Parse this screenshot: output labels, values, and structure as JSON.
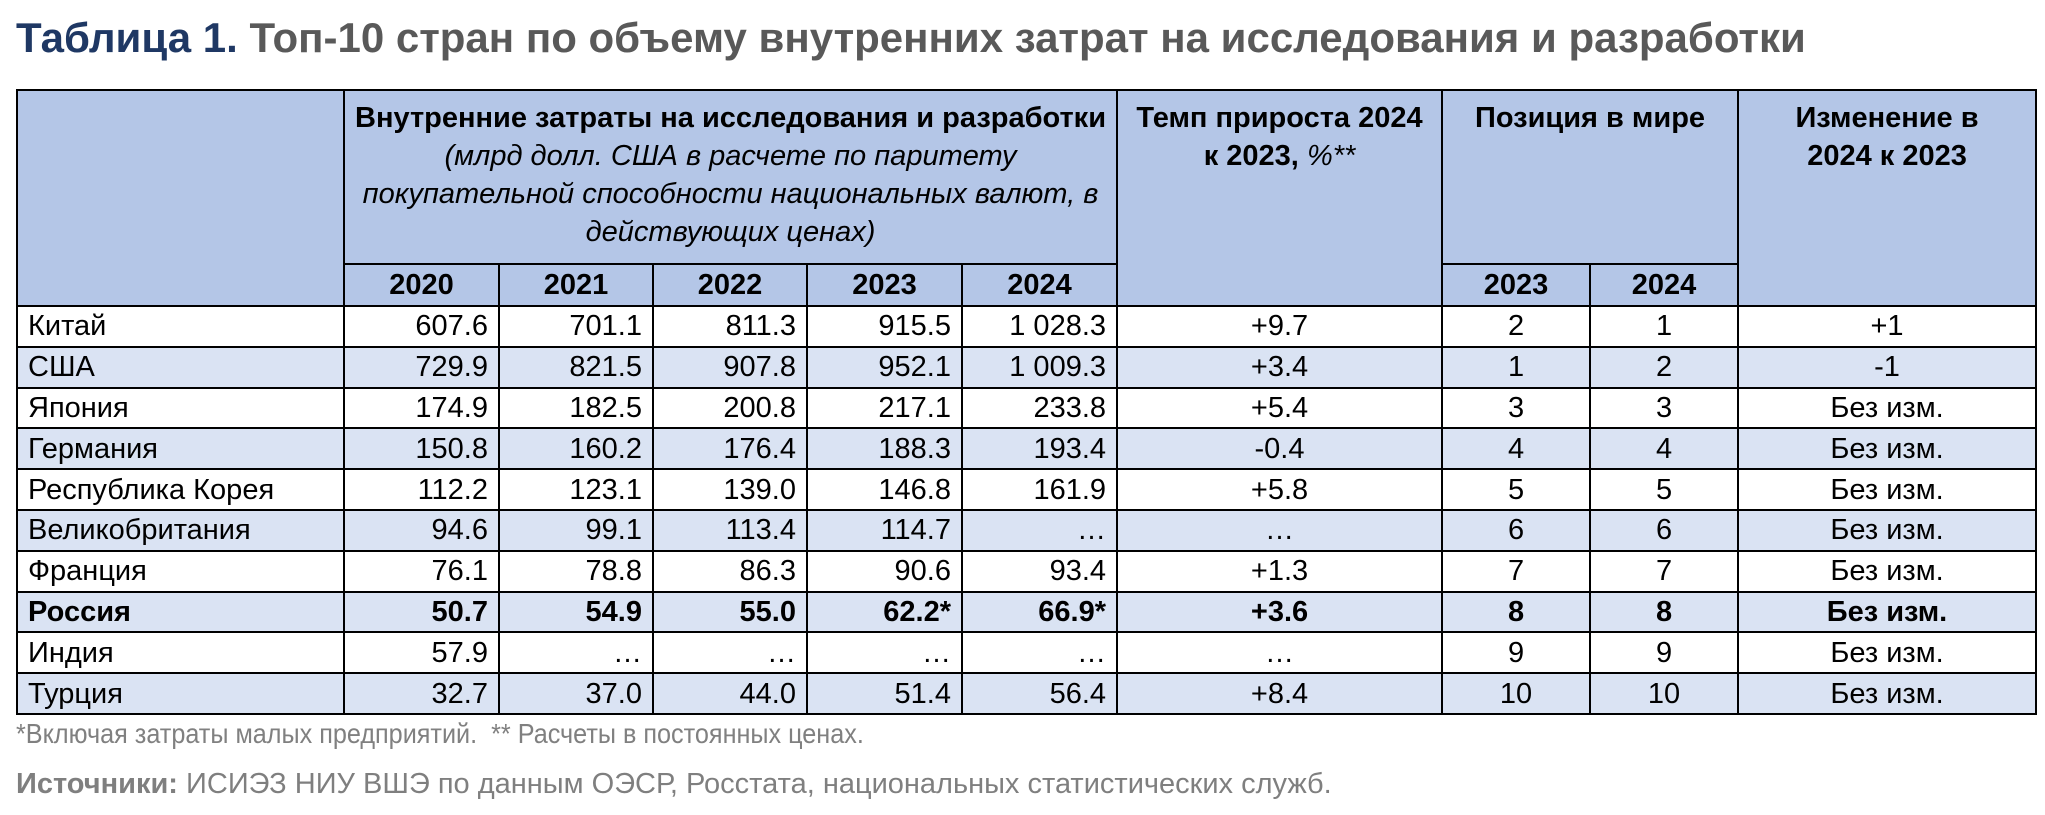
{
  "title": {
    "label": "Таблица 1.",
    "text": "Топ-10 стран по объему внутренних затрат на исследования и разработки"
  },
  "table": {
    "header": {
      "group": {
        "bold": "Внутренние затраты на исследования и разработки",
        "italic": "(млрд долл. США в расчете по паритету покупательной способности национальных валют, в действующих ценах)"
      },
      "years": [
        "2020",
        "2021",
        "2022",
        "2023",
        "2024"
      ],
      "growth": {
        "bold": "Темп прироста 2024 к 2023,",
        "italic": "%**"
      },
      "position": "Позиция в мире",
      "position_years": [
        "2023",
        "2024"
      ],
      "change": "Изменение в 2024 к 2023"
    },
    "rows": [
      [
        "Китай",
        "607.6",
        "701.1",
        "811.3",
        "915.5",
        "1 028.3",
        "+9.7",
        "2",
        "1",
        "+1"
      ],
      [
        "США",
        "729.9",
        "821.5",
        "907.8",
        "952.1",
        "1 009.3",
        "+3.4",
        "1",
        "2",
        "-1"
      ],
      [
        "Япония",
        "174.9",
        "182.5",
        "200.8",
        "217.1",
        "233.8",
        "+5.4",
        "3",
        "3",
        "Без изм."
      ],
      [
        "Германия",
        "150.8",
        "160.2",
        "176.4",
        "188.3",
        "193.4",
        "-0.4",
        "4",
        "4",
        "Без изм."
      ],
      [
        "Республика Корея",
        "112.2",
        "123.1",
        "139.0",
        "146.8",
        "161.9",
        "+5.8",
        "5",
        "5",
        "Без изм."
      ],
      [
        "Великобритания",
        "94.6",
        "99.1",
        "113.4",
        "114.7",
        "…",
        "…",
        "6",
        "6",
        "Без изм."
      ],
      [
        "Франция",
        "76.1",
        "78.8",
        "86.3",
        "90.6",
        "93.4",
        "+1.3",
        "7",
        "7",
        "Без изм."
      ],
      [
        "Россия",
        "50.7",
        "54.9",
        "55.0",
        "62.2*",
        "66.9*",
        "+3.6",
        "8",
        "8",
        "Без изм."
      ],
      [
        "Индия",
        "57.9",
        "…",
        "…",
        "…",
        "…",
        "…",
        "9",
        "9",
        "Без изм."
      ],
      [
        "Турция",
        "32.7",
        "37.0",
        "44.0",
        "51.4",
        "56.4",
        "+8.4",
        "10",
        "10",
        "Без изм."
      ]
    ],
    "highlight_row": 7
  },
  "footnote": "*Включая затраты малых предприятий.  ** Расчеты в постоянных ценах.",
  "source": {
    "label": "Источники:",
    "text": "ИСИЭЗ НИУ ВШЭ по данным ОЭСР, Росстата, национальных статистических служб."
  }
}
